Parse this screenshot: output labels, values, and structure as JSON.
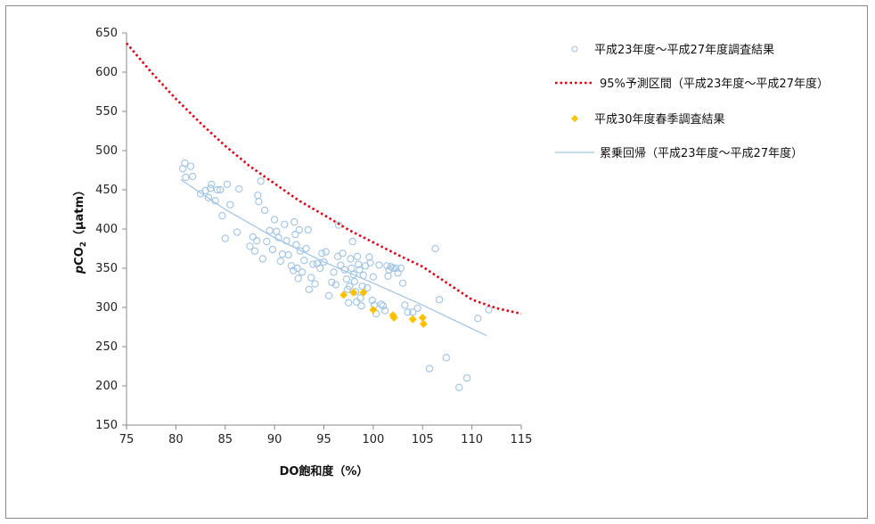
{
  "chart_data": {
    "type": "scatter",
    "xlabel": "DO飽和度（%）",
    "ylabel_italic": "p",
    "ylabel_main": "CO",
    "ylabel_sub": "2",
    "ylabel_unit": "（μatm）",
    "xlim": [
      75,
      115
    ],
    "ylim": [
      150,
      650
    ],
    "x_ticks": [
      75,
      80,
      85,
      90,
      95,
      100,
      105,
      110,
      115
    ],
    "y_ticks": [
      150,
      200,
      250,
      300,
      350,
      400,
      450,
      500,
      550,
      600,
      650
    ],
    "grid": false,
    "legend_position": "right",
    "colors": {
      "observations": "#9dc3e6",
      "prediction": "#e60012",
      "spring": "#ffc000",
      "regression": "#9dc3e6"
    },
    "series": [
      {
        "name": "平成23年度～平成27年度調査結果",
        "kind": "scatter-circle",
        "points": [
          [
            80.7,
            477
          ],
          [
            80.9,
            484
          ],
          [
            81.0,
            466
          ],
          [
            81.5,
            480
          ],
          [
            81.7,
            467
          ],
          [
            82.5,
            445
          ],
          [
            83.0,
            449
          ],
          [
            83.3,
            440
          ],
          [
            83.5,
            452
          ],
          [
            83.6,
            457
          ],
          [
            84.0,
            436
          ],
          [
            84.2,
            450
          ],
          [
            84.5,
            450
          ],
          [
            84.7,
            417
          ],
          [
            85.0,
            388
          ],
          [
            85.2,
            457
          ],
          [
            85.5,
            431
          ],
          [
            86.2,
            396
          ],
          [
            86.4,
            451
          ],
          [
            87.5,
            378
          ],
          [
            87.8,
            390
          ],
          [
            88.0,
            372
          ],
          [
            88.2,
            385
          ],
          [
            88.3,
            443
          ],
          [
            88.4,
            435
          ],
          [
            88.6,
            461
          ],
          [
            88.8,
            362
          ],
          [
            89.0,
            424
          ],
          [
            89.2,
            384
          ],
          [
            89.5,
            398
          ],
          [
            89.8,
            374
          ],
          [
            90.0,
            412
          ],
          [
            90.2,
            397
          ],
          [
            90.4,
            389
          ],
          [
            90.6,
            359
          ],
          [
            90.8,
            368
          ],
          [
            91.0,
            406
          ],
          [
            91.2,
            385
          ],
          [
            91.4,
            367
          ],
          [
            91.7,
            353
          ],
          [
            91.9,
            347
          ],
          [
            92.0,
            409
          ],
          [
            92.1,
            393
          ],
          [
            92.2,
            380
          ],
          [
            92.3,
            350
          ],
          [
            92.4,
            337
          ],
          [
            92.5,
            399
          ],
          [
            92.6,
            372
          ],
          [
            92.8,
            345
          ],
          [
            93.0,
            360
          ],
          [
            93.2,
            375
          ],
          [
            93.4,
            399
          ],
          [
            93.5,
            323
          ],
          [
            93.7,
            338
          ],
          [
            93.9,
            355
          ],
          [
            94.1,
            330
          ],
          [
            94.3,
            356
          ],
          [
            94.6,
            350
          ],
          [
            94.8,
            369
          ],
          [
            95.0,
            358
          ],
          [
            95.2,
            371
          ],
          [
            95.5,
            315
          ],
          [
            95.8,
            332
          ],
          [
            96.0,
            345
          ],
          [
            96.2,
            329
          ],
          [
            96.4,
            365
          ],
          [
            96.5,
            405
          ],
          [
            96.7,
            354
          ],
          [
            96.9,
            369
          ],
          [
            97.1,
            348
          ],
          [
            97.3,
            336
          ],
          [
            97.4,
            323
          ],
          [
            97.5,
            306
          ],
          [
            97.6,
            327
          ],
          [
            97.7,
            362
          ],
          [
            97.8,
            350
          ],
          [
            97.9,
            384
          ],
          [
            98.0,
            342
          ],
          [
            98.1,
            333
          ],
          [
            98.2,
            320
          ],
          [
            98.3,
            307
          ],
          [
            98.4,
            365
          ],
          [
            98.5,
            355
          ],
          [
            98.6,
            348
          ],
          [
            98.7,
            312
          ],
          [
            98.8,
            302
          ],
          [
            98.9,
            327
          ],
          [
            99.0,
            341
          ],
          [
            99.2,
            353
          ],
          [
            99.4,
            325
          ],
          [
            99.6,
            364
          ],
          [
            99.7,
            357
          ],
          [
            99.9,
            309
          ],
          [
            100.0,
            339
          ],
          [
            100.1,
            303
          ],
          [
            100.3,
            292
          ],
          [
            100.6,
            354
          ],
          [
            100.8,
            304
          ],
          [
            101.0,
            302
          ],
          [
            101.2,
            296
          ],
          [
            101.4,
            353
          ],
          [
            101.5,
            340
          ],
          [
            101.6,
            348
          ],
          [
            101.8,
            352
          ],
          [
            102.0,
            350
          ],
          [
            102.3,
            350
          ],
          [
            102.5,
            344
          ],
          [
            102.8,
            350
          ],
          [
            103.0,
            331
          ],
          [
            103.2,
            303
          ],
          [
            103.5,
            294
          ],
          [
            104.0,
            294
          ],
          [
            104.5,
            299
          ],
          [
            105.7,
            222
          ],
          [
            106.3,
            375
          ],
          [
            106.7,
            310
          ],
          [
            107.4,
            236
          ],
          [
            108.7,
            198
          ],
          [
            109.5,
            210
          ],
          [
            110.6,
            286
          ],
          [
            111.7,
            297
          ]
        ]
      },
      {
        "name": "95%予測区間（平成23年度～平成27年度）",
        "kind": "dotted-line",
        "points": [
          [
            75,
            637
          ],
          [
            77.5,
            600
          ],
          [
            80,
            566
          ],
          [
            82.5,
            535
          ],
          [
            85,
            506
          ],
          [
            87.5,
            480
          ],
          [
            90,
            458
          ],
          [
            92.5,
            436
          ],
          [
            95,
            418
          ],
          [
            97.5,
            399
          ],
          [
            100,
            383
          ],
          [
            102.5,
            367
          ],
          [
            105,
            352
          ],
          [
            107.5,
            331
          ],
          [
            110,
            310
          ],
          [
            112.5,
            299
          ],
          [
            115,
            292
          ]
        ]
      },
      {
        "name": "平成30年度春季調査結果",
        "kind": "scatter-diamond",
        "points": [
          [
            97.0,
            316
          ],
          [
            98.0,
            319
          ],
          [
            99.0,
            319
          ],
          [
            100.0,
            297
          ],
          [
            102.0,
            290
          ],
          [
            102.1,
            287
          ],
          [
            104.0,
            285
          ],
          [
            105.0,
            287
          ],
          [
            105.1,
            279
          ]
        ]
      },
      {
        "name": "累乗回帰（平成23年度～平成27年度）",
        "kind": "line",
        "points": [
          [
            80.5,
            463
          ],
          [
            85,
            425
          ],
          [
            90,
            389
          ],
          [
            95,
            358
          ],
          [
            100,
            331
          ],
          [
            105,
            303
          ],
          [
            111.5,
            264
          ]
        ]
      }
    ]
  }
}
